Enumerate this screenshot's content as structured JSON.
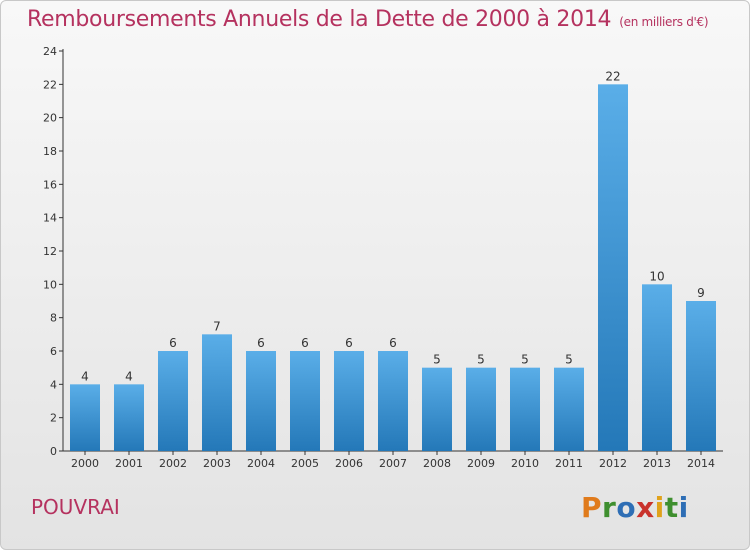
{
  "chart_data": {
    "type": "bar",
    "title": "Remboursements Annuels de la Dette de 2000 à 2014",
    "unit_label": "(en milliers d'€)",
    "categories": [
      "2000",
      "2001",
      "2002",
      "2003",
      "2004",
      "2005",
      "2006",
      "2007",
      "2008",
      "2009",
      "2010",
      "2011",
      "2012",
      "2013",
      "2014"
    ],
    "values": [
      4,
      4,
      6,
      7,
      6,
      6,
      6,
      6,
      5,
      5,
      5,
      5,
      22,
      10,
      9
    ],
    "ylim": [
      0,
      24
    ],
    "yticks": [
      0,
      2,
      4,
      6,
      8,
      10,
      12,
      14,
      16,
      18,
      20,
      22,
      24
    ],
    "grid": false,
    "bar_color_light": "#5aaee8",
    "bar_color_dark": "#2478b8",
    "title_color": "#b5325f"
  },
  "footer": {
    "commune": "POUVRAI",
    "logo_letters": [
      {
        "ch": "P",
        "color": "#e07b1c"
      },
      {
        "ch": "r",
        "color": "#3f8f2f"
      },
      {
        "ch": "o",
        "color": "#2e6eb5"
      },
      {
        "ch": "x",
        "color": "#c9322c"
      },
      {
        "ch": "i",
        "color": "#e0a21c"
      },
      {
        "ch": "t",
        "color": "#3f8f2f"
      },
      {
        "ch": "i",
        "color": "#2e6eb5"
      }
    ]
  }
}
